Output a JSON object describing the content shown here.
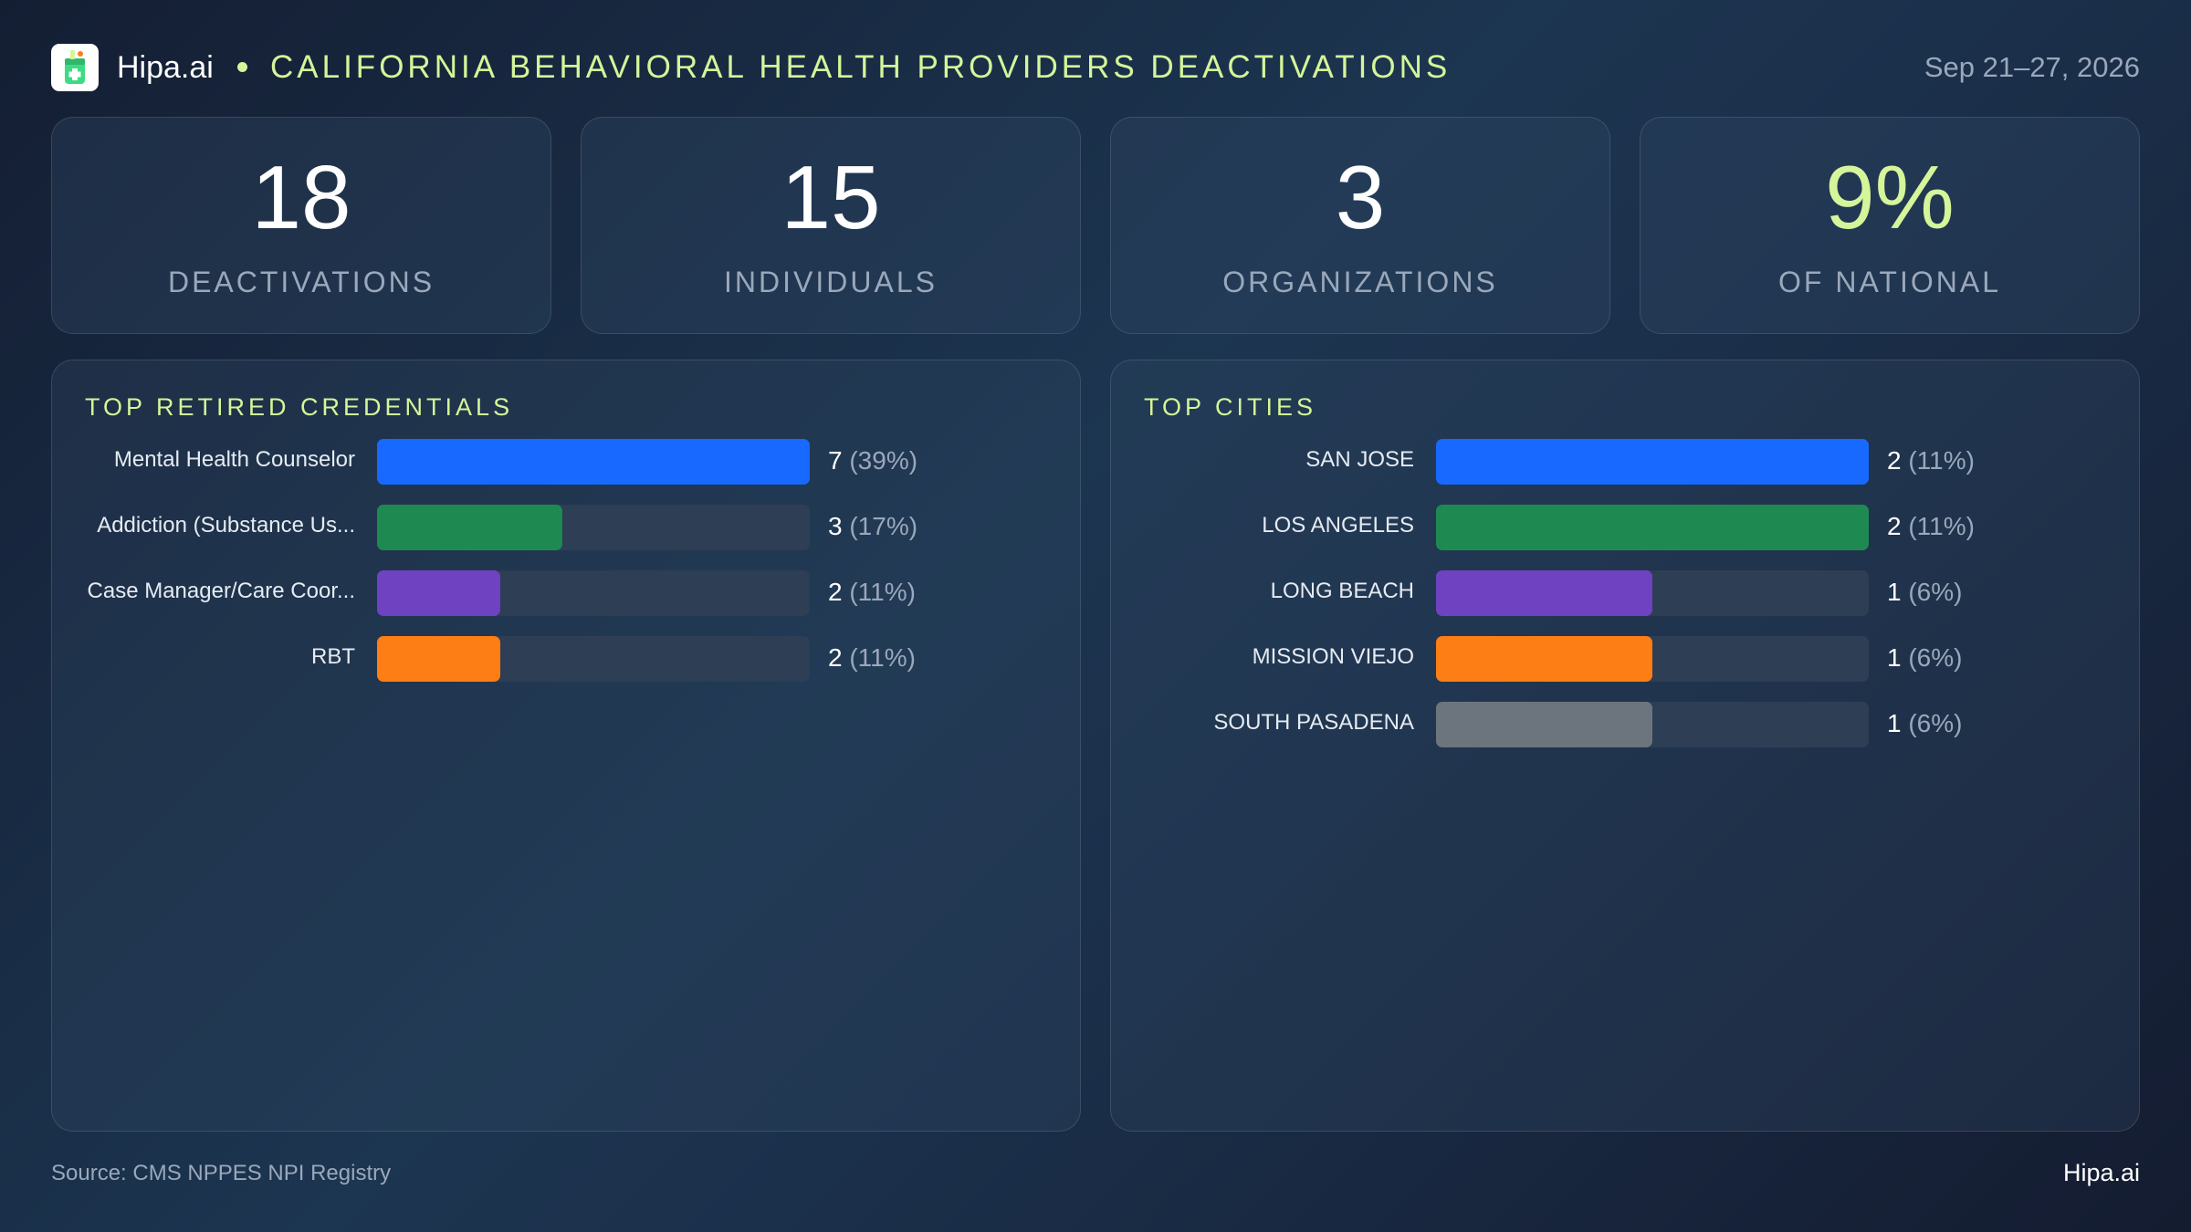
{
  "header": {
    "brand": "Hipa.ai",
    "title": "CALIFORNIA BEHAVIORAL HEALTH PROVIDERS DEACTIVATIONS",
    "date_range": "Sep 21–27, 2026"
  },
  "kpis": [
    {
      "value": "18",
      "label": "DEACTIVATIONS"
    },
    {
      "value": "15",
      "label": "INDIVIDUALS"
    },
    {
      "value": "3",
      "label": "ORGANIZATIONS"
    },
    {
      "value": "9%",
      "label": "OF NATIONAL"
    }
  ],
  "colors": {
    "accent": "#d4f59a",
    "series": [
      "#1769ff",
      "#1e8a52",
      "#6f42c1",
      "#fd7e14",
      "#6c757d"
    ]
  },
  "chart_data": [
    {
      "type": "bar",
      "orientation": "horizontal",
      "title": "TOP RETIRED CREDENTIALS",
      "categories": [
        "Mental Health Counselor",
        "Addiction (Substance Us...",
        "Case Manager/Care Coor...",
        "RBT"
      ],
      "values": [
        7,
        3,
        2,
        2
      ],
      "value_labels": [
        "7",
        "3",
        "2",
        "2"
      ],
      "percent_labels": [
        "(39%)",
        "(17%)",
        "(11%)",
        "(11%)"
      ],
      "xlim": [
        0,
        7
      ]
    },
    {
      "type": "bar",
      "orientation": "horizontal",
      "title": "TOP CITIES",
      "categories": [
        "SAN JOSE",
        "LOS ANGELES",
        "LONG BEACH",
        "MISSION VIEJO",
        "SOUTH PASADENA"
      ],
      "values": [
        2,
        2,
        1,
        1,
        1
      ],
      "value_labels": [
        "2",
        "2",
        "1",
        "1",
        "1"
      ],
      "percent_labels": [
        "(11%)",
        "(11%)",
        "(6%)",
        "(6%)",
        "(6%)"
      ],
      "xlim": [
        0,
        2
      ]
    }
  ],
  "footer": {
    "source": "Source: CMS NPPES NPI Registry",
    "brand": "Hipa.ai"
  }
}
